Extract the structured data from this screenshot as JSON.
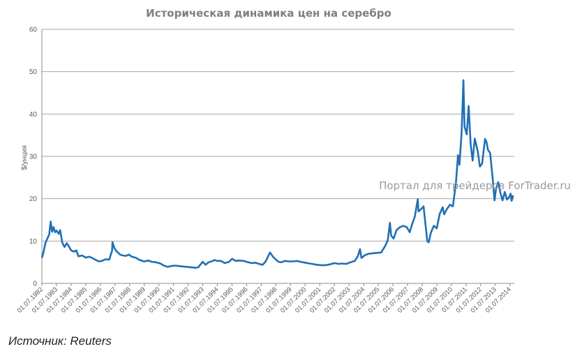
{
  "watermark": "Портал для трейдеров ForTrader.ru",
  "source": "Источник: Reuters",
  "colors": {
    "line": "#1f6fb5",
    "grid": "#a6a6a6",
    "axis": "#8c8c8c",
    "title": "#7f7f7f"
  },
  "chart_data": {
    "type": "line",
    "title": "Историческая динамика цен на серебро",
    "xlabel": "",
    "ylabel": "$/унция",
    "ylim": [
      0,
      60
    ],
    "yticks": [
      0,
      10,
      20,
      30,
      40,
      50,
      60
    ],
    "xlim": [
      1982.5,
      2014.8
    ],
    "xticks": [
      "01.07.1982",
      "01.07.1983",
      "01.07.1984",
      "01.07.1985",
      "01.07.1986",
      "01.07.1987",
      "01.07.1988",
      "01.07.1989",
      "01.07.1990",
      "01.07.1991",
      "01.07.1992",
      "01.07.1993",
      "01.07.1994",
      "01.07.1995",
      "01.07.1996",
      "01.07.1997",
      "01.07.1998",
      "01.07.1999",
      "01.07.2000",
      "01.07.2001",
      "01.07.2002",
      "01.07.2003",
      "01.07.2004",
      "01.07.2005",
      "01.07.2006",
      "01.07.2007",
      "01.07.2008",
      "01.07.2009",
      "01.07.2010",
      "01.07.2011",
      "01.07.2012",
      "01.07.2013",
      "01.07.2014"
    ],
    "grid": true,
    "legend": "none",
    "series": [
      {
        "name": "",
        "points": [
          [
            1982.5,
            6.0
          ],
          [
            1982.6,
            7.2
          ],
          [
            1982.75,
            9.6
          ],
          [
            1982.9,
            10.8
          ],
          [
            1983.0,
            11.5
          ],
          [
            1983.1,
            14.6
          ],
          [
            1983.2,
            12.2
          ],
          [
            1983.3,
            13.3
          ],
          [
            1983.4,
            12.1
          ],
          [
            1983.5,
            12.5
          ],
          [
            1983.65,
            11.7
          ],
          [
            1983.75,
            12.6
          ],
          [
            1983.9,
            9.6
          ],
          [
            1984.05,
            8.6
          ],
          [
            1984.2,
            9.5
          ],
          [
            1984.35,
            8.7
          ],
          [
            1984.5,
            7.8
          ],
          [
            1984.7,
            7.5
          ],
          [
            1984.85,
            7.8
          ],
          [
            1985.0,
            6.4
          ],
          [
            1985.25,
            6.6
          ],
          [
            1985.5,
            6.1
          ],
          [
            1985.75,
            6.3
          ],
          [
            1986.0,
            5.9
          ],
          [
            1986.2,
            5.5
          ],
          [
            1986.4,
            5.2
          ],
          [
            1986.6,
            5.3
          ],
          [
            1986.85,
            5.7
          ],
          [
            1987.1,
            5.6
          ],
          [
            1987.3,
            7.7
          ],
          [
            1987.33,
            9.7
          ],
          [
            1987.45,
            8.4
          ],
          [
            1987.6,
            7.6
          ],
          [
            1987.85,
            6.8
          ],
          [
            1988.05,
            6.6
          ],
          [
            1988.25,
            6.5
          ],
          [
            1988.45,
            6.8
          ],
          [
            1988.65,
            6.3
          ],
          [
            1988.9,
            6.1
          ],
          [
            1989.2,
            5.5
          ],
          [
            1989.5,
            5.2
          ],
          [
            1989.8,
            5.4
          ],
          [
            1990.0,
            5.1
          ],
          [
            1990.3,
            5.0
          ],
          [
            1990.6,
            4.7
          ],
          [
            1990.85,
            4.2
          ],
          [
            1991.1,
            3.9
          ],
          [
            1991.35,
            4.1
          ],
          [
            1991.6,
            4.2
          ],
          [
            1991.85,
            4.1
          ],
          [
            1992.1,
            4.0
          ],
          [
            1992.4,
            3.9
          ],
          [
            1992.7,
            3.8
          ],
          [
            1993.0,
            3.7
          ],
          [
            1993.2,
            3.8
          ],
          [
            1993.35,
            4.5
          ],
          [
            1993.5,
            5.1
          ],
          [
            1993.7,
            4.4
          ],
          [
            1993.9,
            5.0
          ],
          [
            1994.1,
            5.2
          ],
          [
            1994.3,
            5.5
          ],
          [
            1994.5,
            5.3
          ],
          [
            1994.75,
            5.3
          ],
          [
            1995.0,
            4.8
          ],
          [
            1995.3,
            5.1
          ],
          [
            1995.5,
            5.8
          ],
          [
            1995.75,
            5.3
          ],
          [
            1996.0,
            5.4
          ],
          [
            1996.3,
            5.3
          ],
          [
            1996.6,
            5.0
          ],
          [
            1996.85,
            4.8
          ],
          [
            1997.1,
            4.9
          ],
          [
            1997.35,
            4.6
          ],
          [
            1997.6,
            4.4
          ],
          [
            1997.8,
            5.2
          ],
          [
            1998.0,
            6.6
          ],
          [
            1998.1,
            7.3
          ],
          [
            1998.3,
            6.3
          ],
          [
            1998.5,
            5.6
          ],
          [
            1998.7,
            5.1
          ],
          [
            1998.9,
            5.0
          ],
          [
            1999.1,
            5.3
          ],
          [
            1999.4,
            5.2
          ],
          [
            1999.7,
            5.2
          ],
          [
            1999.95,
            5.3
          ],
          [
            2000.2,
            5.1
          ],
          [
            2000.5,
            4.9
          ],
          [
            2000.8,
            4.7
          ],
          [
            2001.0,
            4.6
          ],
          [
            2001.3,
            4.4
          ],
          [
            2001.6,
            4.3
          ],
          [
            2001.9,
            4.3
          ],
          [
            2002.2,
            4.5
          ],
          [
            2002.5,
            4.8
          ],
          [
            2002.8,
            4.6
          ],
          [
            2003.0,
            4.7
          ],
          [
            2003.3,
            4.6
          ],
          [
            2003.6,
            5.0
          ],
          [
            2003.9,
            5.3
          ],
          [
            2004.1,
            6.4
          ],
          [
            2004.25,
            8.1
          ],
          [
            2004.35,
            6.0
          ],
          [
            2004.6,
            6.7
          ],
          [
            2004.85,
            7.0
          ],
          [
            2005.1,
            7.1
          ],
          [
            2005.4,
            7.2
          ],
          [
            2005.7,
            7.3
          ],
          [
            2005.95,
            8.7
          ],
          [
            2006.15,
            10.2
          ],
          [
            2006.3,
            14.3
          ],
          [
            2006.38,
            11.3
          ],
          [
            2006.55,
            10.6
          ],
          [
            2006.75,
            12.6
          ],
          [
            2006.95,
            13.2
          ],
          [
            2007.2,
            13.6
          ],
          [
            2007.45,
            13.3
          ],
          [
            2007.65,
            12.1
          ],
          [
            2007.85,
            14.3
          ],
          [
            2008.0,
            15.8
          ],
          [
            2008.2,
            19.9
          ],
          [
            2008.25,
            17.0
          ],
          [
            2008.45,
            17.6
          ],
          [
            2008.6,
            18.2
          ],
          [
            2008.75,
            13.2
          ],
          [
            2008.85,
            10.0
          ],
          [
            2008.95,
            9.7
          ],
          [
            2009.1,
            12.0
          ],
          [
            2009.3,
            13.6
          ],
          [
            2009.5,
            13.0
          ],
          [
            2009.7,
            16.4
          ],
          [
            2009.9,
            18.0
          ],
          [
            2010.0,
            16.3
          ],
          [
            2010.2,
            17.6
          ],
          [
            2010.4,
            18.6
          ],
          [
            2010.6,
            18.2
          ],
          [
            2010.8,
            23.4
          ],
          [
            2010.95,
            30.3
          ],
          [
            2011.05,
            28.0
          ],
          [
            2011.2,
            35.6
          ],
          [
            2011.32,
            48.0
          ],
          [
            2011.4,
            37.0
          ],
          [
            2011.55,
            35.2
          ],
          [
            2011.68,
            41.9
          ],
          [
            2011.82,
            32.8
          ],
          [
            2011.95,
            29.0
          ],
          [
            2012.1,
            34.2
          ],
          [
            2012.3,
            31.2
          ],
          [
            2012.45,
            27.6
          ],
          [
            2012.6,
            28.3
          ],
          [
            2012.8,
            34.1
          ],
          [
            2012.9,
            33.4
          ],
          [
            2013.0,
            31.5
          ],
          [
            2013.15,
            30.8
          ],
          [
            2013.3,
            25.5
          ],
          [
            2013.45,
            19.6
          ],
          [
            2013.55,
            22.3
          ],
          [
            2013.7,
            23.9
          ],
          [
            2013.85,
            21.4
          ],
          [
            2014.0,
            19.6
          ],
          [
            2014.15,
            21.6
          ],
          [
            2014.3,
            19.8
          ],
          [
            2014.45,
            20.4
          ],
          [
            2014.55,
            21.2
          ],
          [
            2014.62,
            19.5
          ],
          [
            2014.72,
            20.8
          ]
        ]
      }
    ]
  }
}
